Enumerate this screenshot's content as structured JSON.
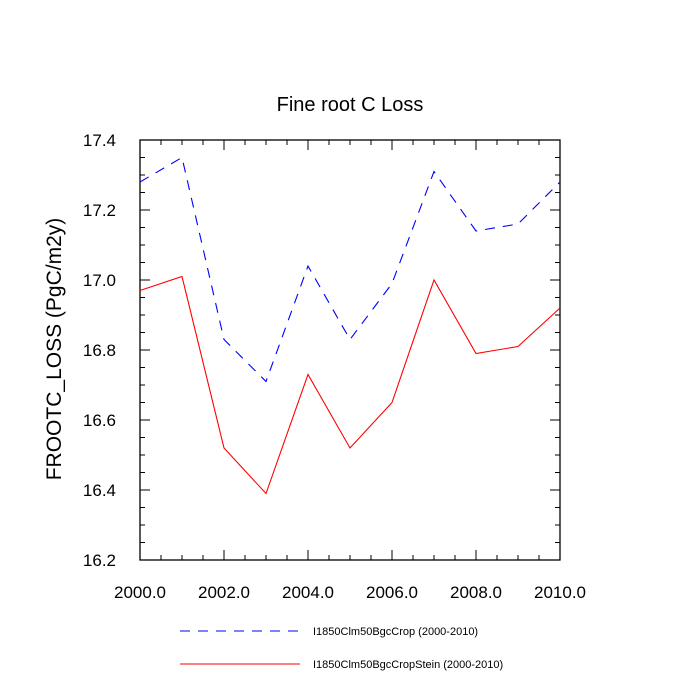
{
  "chart_data": {
    "type": "line",
    "title": "Fine root C Loss",
    "xlabel": "",
    "ylabel": "FROOTC_LOSS  (PgC/m2y)",
    "xlim": [
      2000,
      2010
    ],
    "ylim": [
      16.2,
      17.4
    ],
    "x_major_ticks": [
      2000,
      2002,
      2004,
      2006,
      2008,
      2010
    ],
    "x_tick_labels": [
      "2000.0",
      "2002.0",
      "2004.0",
      "2006.0",
      "2008.0",
      "2010.0"
    ],
    "y_major_ticks": [
      16.2,
      16.4,
      16.6,
      16.8,
      17.0,
      17.2,
      17.4
    ],
    "y_tick_labels": [
      "16.2",
      "16.4",
      "16.6",
      "16.8",
      "17.0",
      "17.2",
      "17.4"
    ],
    "grid": false,
    "legend_position": "bottom",
    "x": [
      2000,
      2001,
      2002,
      2003,
      2004,
      2005,
      2006,
      2007,
      2008,
      2009,
      2010
    ],
    "series": [
      {
        "name": "I1850Clm50BgcCrop (2000-2010)",
        "color": "#0000ff",
        "dash": "dashed",
        "values": [
          17.28,
          17.35,
          16.83,
          16.71,
          17.04,
          16.83,
          16.99,
          17.31,
          17.14,
          17.16,
          17.28
        ]
      },
      {
        "name": "I1850Clm50BgcCropStein (2000-2010)",
        "color": "#ff0000",
        "dash": "solid",
        "values": [
          16.97,
          17.01,
          16.52,
          16.39,
          16.73,
          16.52,
          16.65,
          17.0,
          16.79,
          16.81,
          16.92
        ]
      }
    ]
  }
}
